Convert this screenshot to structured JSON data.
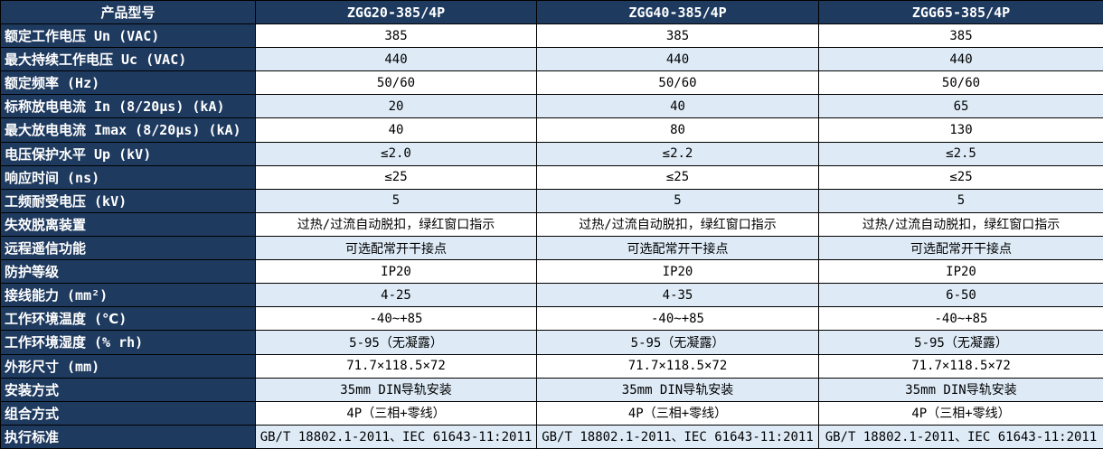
{
  "table": {
    "header": {
      "product_label": "产品型号",
      "columns": [
        "ZGG20-385/4P",
        "ZGG40-385/4P",
        "ZGG65-385/4P"
      ]
    },
    "rows": [
      {
        "label": "额定工作电压 Un (VAC)",
        "values": [
          "385",
          "385",
          "385"
        ]
      },
      {
        "label": "最大持续工作电压 Uc (VAC)",
        "values": [
          "440",
          "440",
          "440"
        ]
      },
      {
        "label": "额定频率 (Hz)",
        "values": [
          "50/60",
          "50/60",
          "50/60"
        ]
      },
      {
        "label": "标称放电电流 In (8/20μs) (kA)",
        "values": [
          "20",
          "40",
          "65"
        ]
      },
      {
        "label": "最大放电电流 Imax (8/20μs) (kA)",
        "values": [
          "40",
          "80",
          "130"
        ]
      },
      {
        "label": "电压保护水平 Up (kV)",
        "values": [
          "≤2.0",
          "≤2.2",
          "≤2.5"
        ]
      },
      {
        "label": "响应时间 (ns)",
        "values": [
          "≤25",
          "≤25",
          "≤25"
        ]
      },
      {
        "label": "工频耐受电压 (kV)",
        "values": [
          "5",
          "5",
          "5"
        ]
      },
      {
        "label": "失效脱离装置",
        "values": [
          "过热/过流自动脱扣，绿红窗口指示",
          "过热/过流自动脱扣，绿红窗口指示",
          "过热/过流自动脱扣，绿红窗口指示"
        ]
      },
      {
        "label": "远程遥信功能",
        "values": [
          "可选配常开干接点",
          "可选配常开干接点",
          "可选配常开干接点"
        ]
      },
      {
        "label": "防护等级",
        "values": [
          "IP20",
          "IP20",
          "IP20"
        ]
      },
      {
        "label": "接线能力 (mm²)",
        "values": [
          "4-25",
          "4-35",
          "6-50"
        ]
      },
      {
        "label": "工作环境温度 (℃)",
        "values": [
          "-40~+85",
          "-40~+85",
          "-40~+85"
        ]
      },
      {
        "label": "工作环境湿度 (% rh)",
        "values": [
          "5-95（无凝露）",
          "5-95（无凝露）",
          "5-95（无凝露）"
        ]
      },
      {
        "label": "外形尺寸 (mm)",
        "values": [
          "71.7×118.5×72",
          "71.7×118.5×72",
          "71.7×118.5×72"
        ]
      },
      {
        "label": "安装方式",
        "values": [
          "35mm DIN导轨安装",
          "35mm DIN导轨安装",
          "35mm DIN导轨安装"
        ]
      },
      {
        "label": "组合方式",
        "values": [
          "4P（三相+零线）",
          "4P（三相+零线）",
          "4P（三相+零线）"
        ]
      },
      {
        "label": "执行标准",
        "values": [
          "GB/T 18802.1-2011、IEC 61643-11:2011",
          "GB/T 18802.1-2011、IEC 61643-11:2011",
          "GB/T 18802.1-2011、IEC 61643-11:2011"
        ]
      }
    ]
  },
  "colors": {
    "header_bg": "#1E3A5F",
    "header_text": "#FFFFFF",
    "row_bg": "#FFFFFF",
    "row_alt_bg": "#DEEBF7",
    "cell_text": "#000000",
    "border": "#000000"
  }
}
